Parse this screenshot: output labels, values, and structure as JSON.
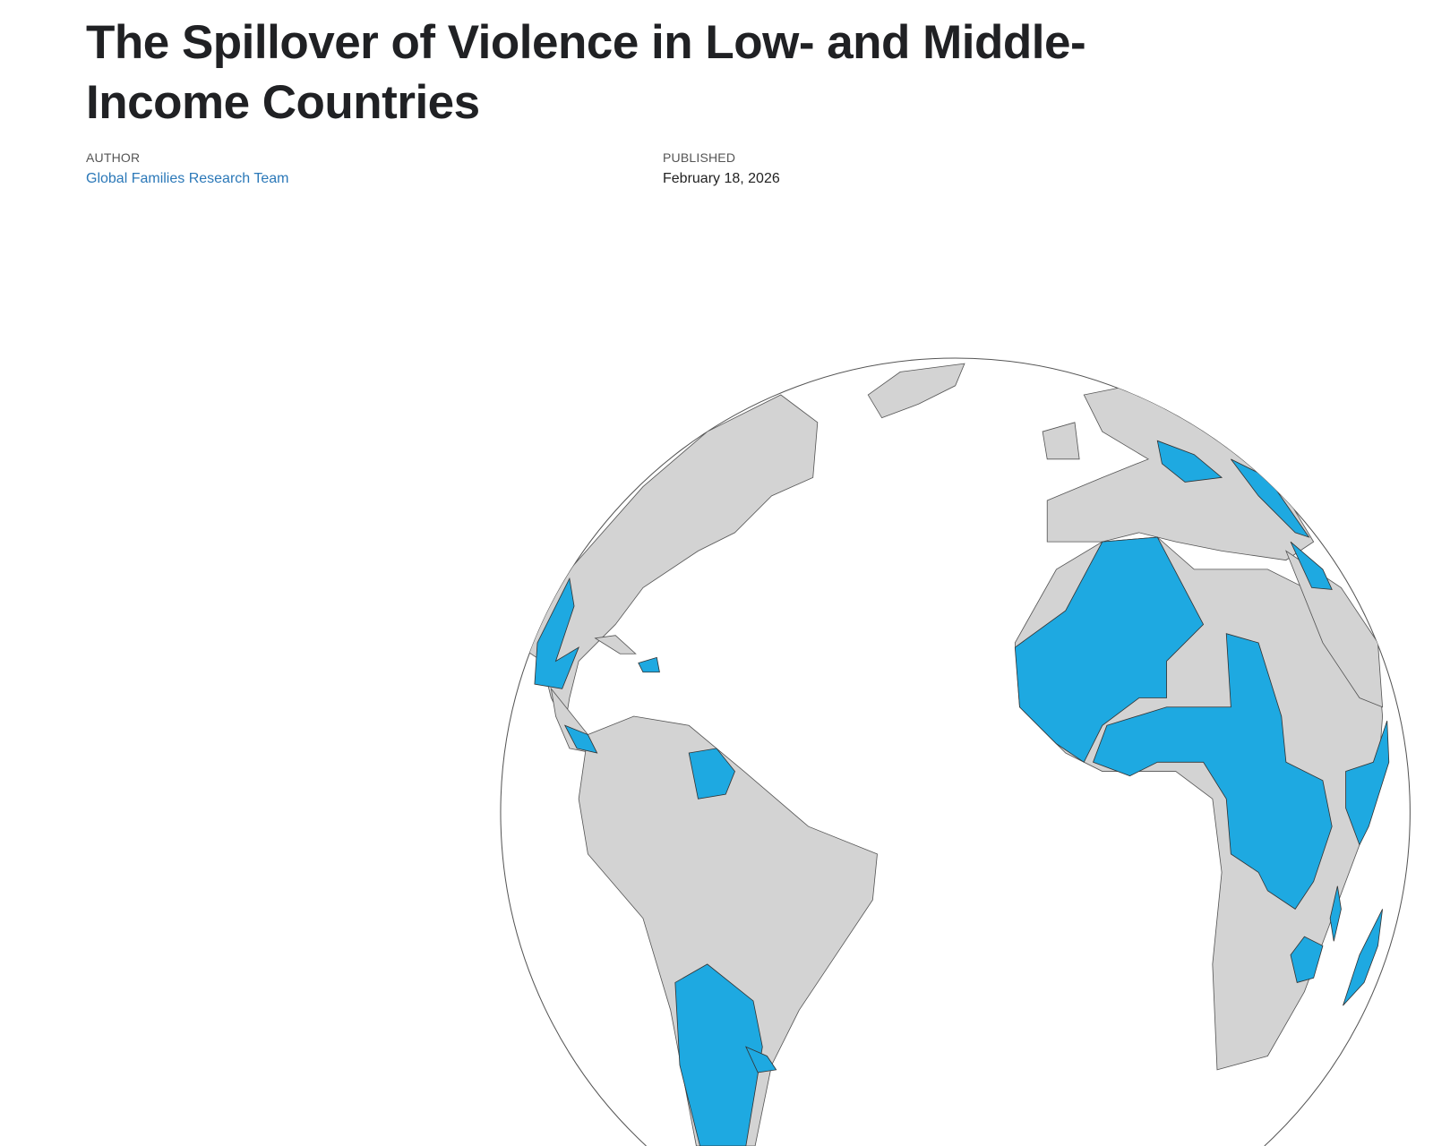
{
  "article": {
    "title": "The Spillover of Violence in Low- and Middle-Income Countries",
    "author_label": "AUTHOR",
    "author": "Global Families Research Team",
    "published_label": "PUBLISHED",
    "published": "February 18, 2026"
  },
  "map": {
    "projection": "orthographic globe",
    "land_color": "#d3d3d3",
    "highlight_color": "#1ea9e1",
    "ocean_color": "#ffffff"
  }
}
